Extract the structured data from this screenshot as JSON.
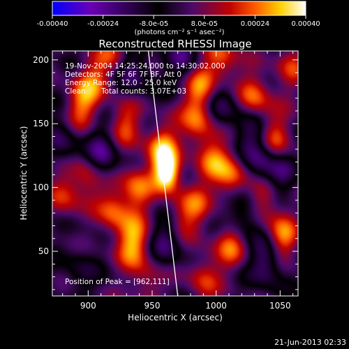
{
  "chart_data": {
    "type": "heatmap",
    "title": "Reconstructed RHESSI Image",
    "xlabel": "Heliocentric X (arcsec)",
    "ylabel": "Heliocentric Y (arcsec)",
    "xlim": [
      872,
      1064
    ],
    "ylim": [
      15,
      207
    ],
    "xticks": [
      900,
      950,
      1000,
      1050
    ],
    "xtick_labels": [
      "900",
      "950",
      "1000",
      "1050"
    ],
    "yticks": [
      50,
      100,
      150,
      200
    ],
    "ytick_labels": [
      "50",
      "100",
      "150",
      "200"
    ],
    "grid": false,
    "colorbar": {
      "position": "top",
      "range": [
        -0.0004,
        0.0004
      ],
      "tick_values": [
        -0.0004,
        -0.00024,
        -8e-05,
        8e-05,
        0.00024,
        0.0004
      ],
      "tick_labels": [
        "-0.00040",
        "-0.00024",
        "-8.0e-05",
        "8.0e-05",
        "0.00024",
        "0.00040"
      ],
      "unit_label": "(photons cm⁻² s⁻¹ asec⁻²)",
      "colors": [
        "#0000ff",
        "#6a00b5",
        "#000000",
        "#4a0a6a",
        "#c00000",
        "#ff5a00",
        "#ffd000",
        "#ffffff"
      ]
    },
    "annotations": [
      "19-Nov-2004 14:25:24.000 to 14:30:02.000",
      "Detectors: 4F 5F 6F 7F 8F, Att 0",
      "Energy Range: 12.0 - 25.0 keV",
      "Clean",
      "Total counts: 3.07E+03"
    ],
    "peak_label": "Position of Peak = [962,111]",
    "peak": {
      "x": 962,
      "y": 111,
      "value": 0.0004
    },
    "limb_line": [
      [
        947,
        207
      ],
      [
        970,
        15
      ]
    ],
    "sources": [
      {
        "x": 962,
        "y": 111,
        "value": 0.0004
      },
      {
        "x": 958,
        "y": 130,
        "value": 0.0003
      },
      {
        "x": 988,
        "y": 178,
        "value": 0.00026
      },
      {
        "x": 985,
        "y": 150,
        "value": 0.00022
      },
      {
        "x": 1004,
        "y": 200,
        "value": 0.00024
      },
      {
        "x": 1030,
        "y": 170,
        "value": 0.00026
      },
      {
        "x": 1047,
        "y": 138,
        "value": 0.00022
      },
      {
        "x": 1012,
        "y": 108,
        "value": 0.00025
      },
      {
        "x": 998,
        "y": 122,
        "value": 0.0002
      },
      {
        "x": 1038,
        "y": 94,
        "value": 0.00024
      },
      {
        "x": 1052,
        "y": 60,
        "value": 0.00026
      },
      {
        "x": 1012,
        "y": 55,
        "value": 0.00022
      },
      {
        "x": 984,
        "y": 85,
        "value": 0.00018
      },
      {
        "x": 990,
        "y": 30,
        "value": 0.00018
      },
      {
        "x": 935,
        "y": 57,
        "value": 0.0003
      },
      {
        "x": 920,
        "y": 82,
        "value": 0.00022
      },
      {
        "x": 938,
        "y": 99,
        "value": 0.00024
      },
      {
        "x": 900,
        "y": 110,
        "value": 0.0002
      },
      {
        "x": 882,
        "y": 95,
        "value": 0.00018
      },
      {
        "x": 895,
        "y": 165,
        "value": 0.00024
      },
      {
        "x": 930,
        "y": 150,
        "value": 0.0002
      },
      {
        "x": 905,
        "y": 185,
        "value": 0.00018
      },
      {
        "x": 920,
        "y": 205,
        "value": 0.00016
      },
      {
        "x": 970,
        "y": 75,
        "value": 0.00016
      },
      {
        "x": 945,
        "y": 25,
        "value": 0.00014
      },
      {
        "x": 1058,
        "y": 195,
        "value": 0.00016
      },
      {
        "x": 893,
        "y": 35,
        "value": -0.0001
      },
      {
        "x": 1040,
        "y": 42,
        "value": -0.00024
      },
      {
        "x": 1035,
        "y": 118,
        "value": -0.00022
      },
      {
        "x": 1028,
        "y": 145,
        "value": -0.00016
      },
      {
        "x": 1050,
        "y": 110,
        "value": -0.00018
      },
      {
        "x": 910,
        "y": 125,
        "value": -0.00026
      },
      {
        "x": 935,
        "y": 190,
        "value": -0.0002
      },
      {
        "x": 962,
        "y": 60,
        "value": -0.00022
      },
      {
        "x": 880,
        "y": 135,
        "value": -0.00016
      },
      {
        "x": 975,
        "y": 200,
        "value": -0.00018
      },
      {
        "x": 1005,
        "y": 165,
        "value": -0.00018
      },
      {
        "x": 1020,
        "y": 80,
        "value": -0.0002
      }
    ]
  },
  "footer": {
    "timestamp": "21-Jun-2013 02:33"
  }
}
